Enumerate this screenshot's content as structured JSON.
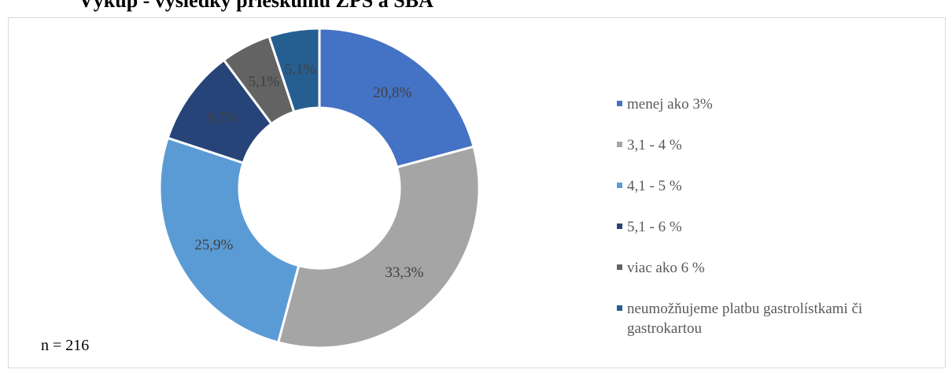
{
  "title": "Výkup - výsledky prieskumu ZPS a SBA",
  "note": "n = 216",
  "chart_data": {
    "type": "pie",
    "variant": "donut",
    "categories": [
      "menej ako 3%",
      "3,1 - 4 %",
      "4,1 - 5 %",
      "5,1 - 6 %",
      "viac ako 6 %",
      "neumožňujeme platbu gastrolístkami či gastrokartou"
    ],
    "values": [
      20.8,
      33.3,
      25.9,
      9.7,
      5.1,
      5.1
    ],
    "value_labels": [
      "20,8%",
      "33,3%",
      "25,9%",
      "9,7%",
      "5,1%",
      "5,1%"
    ],
    "colors": [
      "#4472c4",
      "#a5a5a5",
      "#5b9bd5",
      "#264478",
      "#636363",
      "#255e91"
    ],
    "label_colors": [
      "#404040",
      "#404040",
      "#404040",
      "#404040",
      "#404040",
      "#404040"
    ],
    "legend_position": "right"
  }
}
